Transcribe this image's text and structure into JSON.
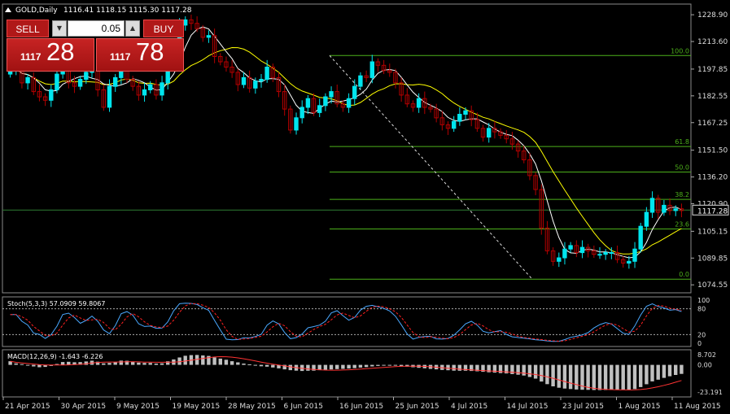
{
  "header": {
    "symbol": "GOLD,Daily",
    "ohlc": "1116.41 1118.15 1115.30 1117.28"
  },
  "one_click": {
    "sell_label": "SELL",
    "buy_label": "BUY",
    "volume": "0.05",
    "sell_small": "1117",
    "sell_big": "28",
    "buy_small": "1117",
    "buy_big": "78"
  },
  "price_axis": {
    "ticks": [
      "1228.90",
      "1213.60",
      "1197.85",
      "1182.55",
      "1167.25",
      "1151.50",
      "1136.20",
      "1120.90",
      "1105.15",
      "1089.85",
      "1074.55"
    ],
    "current": "1117.28"
  },
  "fibonacci": {
    "levels": [
      {
        "label": "100.0",
        "price": 1205.6
      },
      {
        "label": "61.8",
        "price": 1153.6
      },
      {
        "label": "50.0",
        "price": 1139.0
      },
      {
        "label": "38.2",
        "price": 1123.4
      },
      {
        "label": "23.6",
        "price": 1106.5
      },
      {
        "label": "0.0",
        "price": 1077.8
      }
    ]
  },
  "stochastic": {
    "label": "Stoch(5,3,3) 57.0909 59.8067",
    "ticks": [
      "100",
      "80",
      "20",
      "0"
    ]
  },
  "macd": {
    "label": "MACD(12,26,9) -1.643 -6.226",
    "ticks": [
      "8.702",
      "0.00",
      "-23.191"
    ]
  },
  "time_axis": {
    "labels": [
      "21 Apr 2015",
      "30 Apr 2015",
      "9 May 2015",
      "19 May 2015",
      "28 May 2015",
      "6 Jun 2015",
      "16 Jun 2015",
      "25 Jun 2015",
      "4 Jul 2015",
      "14 Jul 2015",
      "23 Jul 2015",
      "1 Aug 2015",
      "11 Aug 2015"
    ]
  },
  "colors": {
    "bull": "#00e5ee",
    "bear": "#b30000",
    "fib": "#4caf1a",
    "ma_slow": "#ffff00",
    "ma_fast": "#ffffff",
    "grid_level": "#2e7d32",
    "signal": "#ff3333",
    "hist": "#c0c0c0",
    "stoch_main": "#4aa8ff",
    "stoch_signal": "#ff2020"
  },
  "chart_data": {
    "type": "candlestick",
    "symbol": "GOLD",
    "timeframe": "Daily",
    "ylim": [
      1070,
      1235
    ],
    "closes": [
      1197,
      1199,
      1190,
      1193,
      1185,
      1182,
      1180,
      1186,
      1195,
      1203,
      1190,
      1188,
      1192,
      1196,
      1197,
      1186,
      1176,
      1188,
      1193,
      1201,
      1192,
      1188,
      1183,
      1186,
      1189,
      1183,
      1190,
      1204,
      1209,
      1223,
      1226,
      1224,
      1221,
      1216,
      1217,
      1205,
      1202,
      1199,
      1196,
      1189,
      1193,
      1187,
      1191,
      1192,
      1199,
      1193,
      1185,
      1175,
      1163,
      1170,
      1176,
      1181,
      1173,
      1177,
      1182,
      1185,
      1178,
      1176,
      1181,
      1188,
      1194,
      1193,
      1202,
      1200,
      1197,
      1196,
      1190,
      1183,
      1178,
      1176,
      1181,
      1176,
      1175,
      1170,
      1166,
      1164,
      1168,
      1172,
      1174,
      1169,
      1164,
      1159,
      1164,
      1162,
      1160,
      1158,
      1155,
      1151,
      1146,
      1137,
      1129,
      1107,
      1094,
      1088,
      1090,
      1095,
      1097,
      1093,
      1096,
      1094,
      1092,
      1092,
      1093,
      1093,
      1089,
      1087,
      1088,
      1095,
      1108,
      1116,
      1124,
      1116,
      1120,
      1117,
      1118,
      1117
    ],
    "macd_hist": [
      3.1,
      1.2,
      0.6,
      -0.4,
      -1.3,
      -2.0,
      -1.7,
      -0.9,
      0.7,
      2.4,
      2.6,
      2.2,
      2.3,
      2.9,
      3.5,
      2.7,
      1.3,
      1.6,
      2.3,
      3.6,
      3.4,
      2.7,
      1.9,
      1.6,
      1.6,
      1.1,
      1.3,
      3.0,
      4.6,
      6.3,
      7.7,
      8.3,
      8.4,
      8.0,
      7.6,
      6.3,
      5.3,
      4.3,
      3.1,
      2.1,
      1.1,
      0.4,
      -0.6,
      -1.2,
      -1.5,
      -2.2,
      -3.0,
      -3.8,
      -4.5,
      -4.9,
      -5.2,
      -5.0,
      -4.9,
      -4.5,
      -4.2,
      -3.9,
      -3.6,
      -3.4,
      -3.1,
      -2.8,
      -2.3,
      -1.9,
      -1.3,
      -0.9,
      -0.6,
      -0.5,
      -0.5,
      -1.0,
      -1.5,
      -2.0,
      -2.5,
      -2.9,
      -3.4,
      -3.8,
      -4.3,
      -4.6,
      -4.9,
      -5.0,
      -5.0,
      -5.2,
      -5.5,
      -5.9,
      -6.3,
      -6.6,
      -7.0,
      -7.3,
      -7.8,
      -8.4,
      -9.1,
      -10.3,
      -11.7,
      -14.2,
      -16.4,
      -18.3,
      -19.5,
      -20.2,
      -20.6,
      -21.0,
      -21.2,
      -21.3,
      -21.4,
      -21.5,
      -21.4,
      -21.4,
      -21.3,
      -21.4,
      -21.3,
      -20.6,
      -18.9,
      -16.5,
      -14.1,
      -12.6,
      -11.1,
      -9.7,
      -8.6,
      -7.7
    ]
  }
}
